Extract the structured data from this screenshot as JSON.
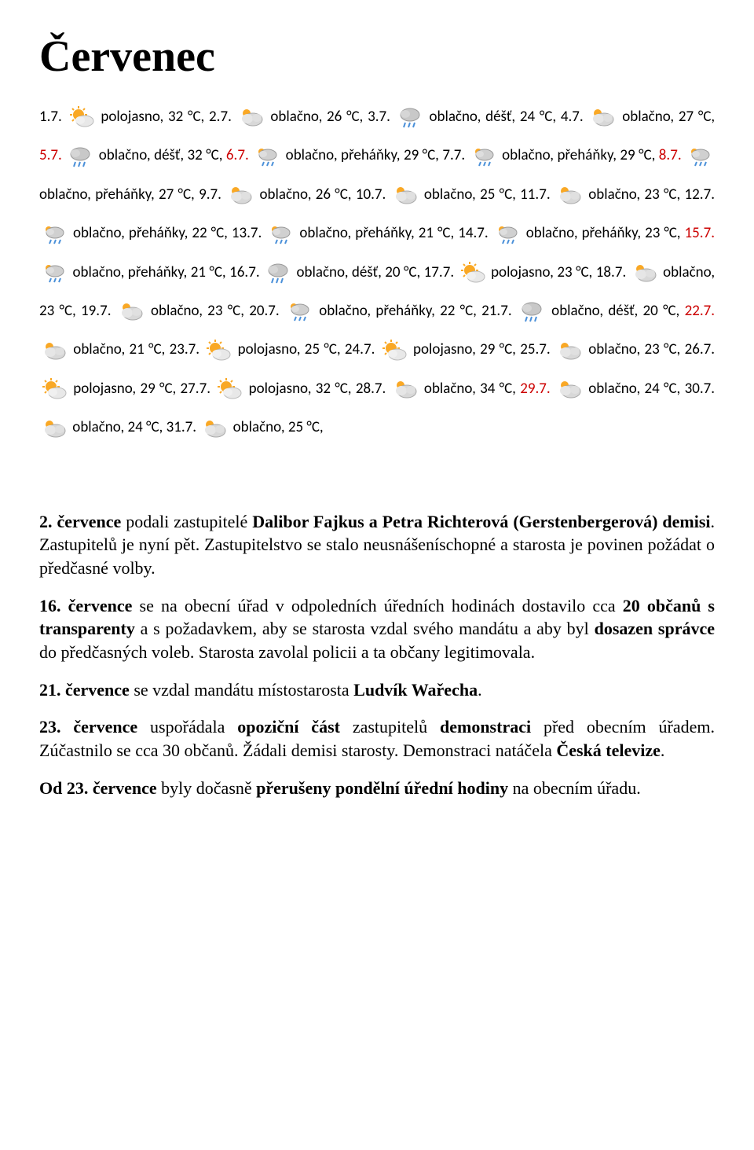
{
  "title": "Červenec",
  "icons": {
    "partly_sunny": "ps",
    "cloudy": "cl",
    "cloudy_rain": "cr",
    "cloudy_showers": "cs"
  },
  "weather": [
    {
      "date": "1.7.",
      "red": false,
      "icon": "ps",
      "cond": "polojasno",
      "temp": "32 °C"
    },
    {
      "date": "2.7.",
      "red": false,
      "icon": "cl",
      "cond": "oblačno",
      "temp": "26 °C"
    },
    {
      "date": "3.7.",
      "red": false,
      "icon": "cr",
      "cond": "oblačno, déšť",
      "temp": "24 °C"
    },
    {
      "date": "4.7.",
      "red": false,
      "icon": "cl",
      "cond": "oblačno",
      "temp": "27 °C"
    },
    {
      "date": "5.7.",
      "red": true,
      "icon": "cr",
      "cond": "oblačno, déšť",
      "temp": "32 °C"
    },
    {
      "date": "6.7.",
      "red": true,
      "icon": "cs",
      "cond": "oblačno, přeháňky",
      "temp": "29 °C"
    },
    {
      "date": "7.7.",
      "red": false,
      "icon": "cs",
      "cond": "oblačno, přeháňky",
      "temp": "29 °C"
    },
    {
      "date": "8.7.",
      "red": true,
      "icon": "cs",
      "cond": "oblačno, přeháňky",
      "temp": "27 °C"
    },
    {
      "date": "9.7.",
      "red": false,
      "icon": "cl",
      "cond": "oblačno",
      "temp": "26 °C"
    },
    {
      "date": "10.7.",
      "red": false,
      "icon": "cl",
      "cond": "oblačno",
      "temp": "25 °C"
    },
    {
      "date": "11.7.",
      "red": false,
      "icon": "cl",
      "cond": "oblačno",
      "temp": "23 °C"
    },
    {
      "date": "12.7.",
      "red": false,
      "icon": "cs",
      "cond": "oblačno, přeháňky",
      "temp": "22 °C"
    },
    {
      "date": "13.7.",
      "red": false,
      "icon": "cs",
      "cond": "oblačno, přeháňky",
      "temp": "21 °C"
    },
    {
      "date": "14.7.",
      "red": false,
      "icon": "cs",
      "cond": "oblačno, přeháňky",
      "temp": "23 °C"
    },
    {
      "date": "15.7.",
      "red": true,
      "icon": "cs",
      "cond": "oblačno, přeháňky",
      "temp": "21 °C"
    },
    {
      "date": "16.7.",
      "red": false,
      "icon": "cr",
      "cond": "oblačno, déšť",
      "temp": "20 °C"
    },
    {
      "date": "17.7.",
      "red": false,
      "icon": "ps",
      "cond": "polojasno",
      "temp": "23 °C"
    },
    {
      "date": "18.7.",
      "red": false,
      "icon": "cl",
      "cond": "oblačno",
      "temp": "23 °C"
    },
    {
      "date": "19.7.",
      "red": false,
      "icon": "cl",
      "cond": "oblačno",
      "temp": "23 °C"
    },
    {
      "date": "20.7.",
      "red": false,
      "icon": "cs",
      "cond": "oblačno, přeháňky",
      "temp": "22 °C"
    },
    {
      "date": "21.7.",
      "red": false,
      "icon": "cr",
      "cond": "oblačno, déšť",
      "temp": "20 °C"
    },
    {
      "date": "22.7.",
      "red": true,
      "icon": "cl",
      "cond": "oblačno",
      "temp": "21 °C"
    },
    {
      "date": "23.7.",
      "red": false,
      "icon": "ps",
      "cond": "polojasno",
      "temp": "25 °C"
    },
    {
      "date": "24.7.",
      "red": false,
      "icon": "ps",
      "cond": "polojasno",
      "temp": "29 °C"
    },
    {
      "date": "25.7.",
      "red": false,
      "icon": "cl",
      "cond": "oblačno",
      "temp": "23 °C"
    },
    {
      "date": "26.7.",
      "red": false,
      "icon": "ps",
      "cond": "polojasno",
      "temp": "29 °C"
    },
    {
      "date": "27.7.",
      "red": false,
      "icon": "ps",
      "cond": "polojasno",
      "temp": "32 °C"
    },
    {
      "date": "28.7.",
      "red": false,
      "icon": "cl",
      "cond": "oblačno",
      "temp": "34 °C"
    },
    {
      "date": "29.7.",
      "red": true,
      "icon": "cl",
      "cond": "oblačno",
      "temp": "24 °C"
    },
    {
      "date": "30.7.",
      "red": false,
      "icon": "cl",
      "cond": "oblačno",
      "temp": "24 °C"
    },
    {
      "date": "31.7.",
      "red": false,
      "icon": "cl",
      "cond": "oblačno",
      "temp": "25 °C"
    }
  ],
  "paragraphs": [
    {
      "html": "<b>2. července</b> podali zastupitelé <b>Dalibor Fajkus a Petra Richterová (Gerstenbergerová) demisi</b>. Zastupitelů je nyní pět. Zastupitelstvo se stalo neusnášeníschopné a starosta je povinen požádat o předčasné volby."
    },
    {
      "html": "<b>16. července</b> se na obecní úřad v odpoledních úředních hodinách dostavilo cca <b>20 občanů s transparenty</b> a s požadavkem, aby se starosta vzdal svého mandátu a aby byl <b>dosazen správce</b> do předčasných voleb. Starosta zavolal policii a ta občany legitimovala."
    },
    {
      "html": "<b>21. července</b> se vzdal mandátu místostarosta <b>Ludvík Wařecha</b>."
    },
    {
      "html": "<b>23. července</b> uspořádala <b>opoziční část</b> zastupitelů <b>demonstraci</b> před obecním úřadem. Zúčastnilo se cca 30 občanů. Žádali demisi starosty. Demonstraci natáčela <b>Česká televize</b>."
    },
    {
      "html": "<b>Od 23. července</b> byly dočasně <b>přerušeny pondělní úřední hodiny</b> na obecním úřadu."
    }
  ]
}
